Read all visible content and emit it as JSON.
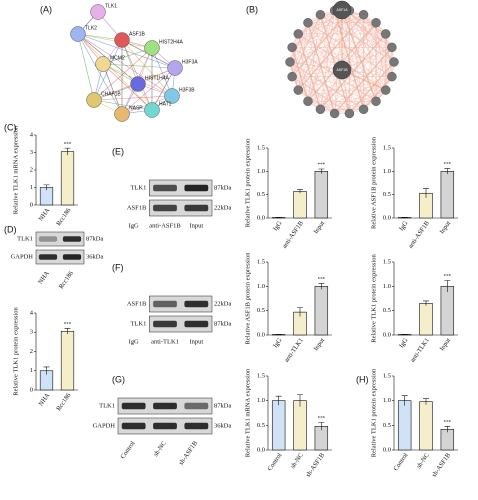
{
  "panels": [
    "(A)",
    "(B)",
    "(C)",
    "(D)",
    "(E)",
    "(F)",
    "(G)",
    "(H)"
  ],
  "network_a": {
    "nodes": [
      "TLK1",
      "TLK2",
      "ASF1B",
      "HIST2H4A",
      "H3F3A",
      "MCM2",
      "HIST1H4A",
      "H3F3B",
      "CHAF1B",
      "HAT1",
      "NASP"
    ]
  },
  "network_b": {
    "nodes": [
      "ASF1A",
      "ASF1B"
    ]
  },
  "blots": [
    {
      "rows": [
        {
          "protein": "TLK1",
          "size": "87kDa"
        },
        {
          "protein": "GAPDH",
          "size": "36kDa"
        }
      ],
      "lanes": [
        "NHA",
        "Rcc186"
      ]
    },
    {
      "rows": [
        {
          "protein": "TLK1",
          "size": "87kDa"
        },
        {
          "protein": "ASF1B",
          "size": "22kDa"
        }
      ],
      "lanes": [
        "IgG",
        "anti-ASF1B",
        "Input"
      ]
    },
    {
      "rows": [
        {
          "protein": "ASF1B",
          "size": "22kDa"
        },
        {
          "protein": "TLK1",
          "size": "87kDa"
        }
      ],
      "lanes": [
        "IgG",
        "anti-TLK1",
        "Input"
      ]
    },
    {
      "rows": [
        {
          "protein": "TLK1",
          "size": "87kDa"
        },
        {
          "protein": "GAPDH",
          "size": "36kDa"
        }
      ],
      "lanes": [
        "Control",
        "sh-NC",
        "sh-ASF1B"
      ]
    }
  ],
  "chart_data": [
    {
      "type": "bar",
      "ylabel": "Relative TLK1 mRNA expression",
      "categories": [
        "NHA",
        "Rcc186"
      ],
      "values": [
        1.0,
        3.05
      ],
      "errors": [
        0.15,
        0.2
      ],
      "colors": [
        "#cfe2f6",
        "#f5eecb"
      ],
      "ylim": [
        0,
        4
      ],
      "yticks": [
        0,
        1,
        2,
        3,
        4
      ],
      "significance": [
        null,
        "***"
      ]
    },
    {
      "type": "bar",
      "ylabel": "Relative TLK1 protein expression",
      "categories": [
        "NHA",
        "Rcc186"
      ],
      "values": [
        1.0,
        3.05
      ],
      "errors": [
        0.2,
        0.15
      ],
      "colors": [
        "#cfe2f6",
        "#f5eecb"
      ],
      "ylim": [
        0,
        4
      ],
      "yticks": [
        0,
        1,
        2,
        3,
        4
      ],
      "significance": [
        null,
        "***"
      ]
    },
    {
      "type": "bar",
      "ylabel": "Relative TLK1 protein expression",
      "categories": [
        "IgG",
        "anti-ASF1B",
        "Input"
      ],
      "values": [
        0.01,
        0.57,
        1.0
      ],
      "errors": [
        0.005,
        0.04,
        0.05
      ],
      "colors": [
        "#cfe2f6",
        "#f5eecb",
        "#d4d4d4"
      ],
      "ylim": [
        0,
        1.5
      ],
      "yticks": [
        {
          "value": 0,
          "label": "0.0"
        },
        {
          "value": 0.5,
          "label": "0.5"
        },
        {
          "value": 1,
          "label": "1.0"
        },
        {
          "value": 1.5,
          "label": "1.5"
        }
      ],
      "significance": [
        null,
        null,
        "***"
      ]
    },
    {
      "type": "bar",
      "ylabel": "Relative ASF1B protein expression",
      "categories": [
        "IgG",
        "anti-ASF1B",
        "Input"
      ],
      "values": [
        0.01,
        0.53,
        1.0
      ],
      "errors": [
        0.005,
        0.1,
        0.06
      ],
      "colors": [
        "#cfe2f6",
        "#f5eecb",
        "#d4d4d4"
      ],
      "ylim": [
        0,
        1.5
      ],
      "yticks": [
        {
          "value": 0,
          "label": "0.0"
        },
        {
          "value": 0.5,
          "label": "0.5"
        },
        {
          "value": 1,
          "label": "1.0"
        },
        {
          "value": 1.5,
          "label": "1.5"
        }
      ],
      "significance": [
        null,
        null,
        "***"
      ]
    },
    {
      "type": "bar",
      "ylabel": "Relative ASF1B protein expression",
      "categories": [
        "IgG",
        "anti-TLK1",
        "Input"
      ],
      "values": [
        0.01,
        0.47,
        1.0
      ],
      "errors": [
        0.005,
        0.09,
        0.06
      ],
      "colors": [
        "#cfe2f6",
        "#f5eecb",
        "#d4d4d4"
      ],
      "ylim": [
        0,
        1.5
      ],
      "yticks": [
        {
          "value": 0,
          "label": "0.0"
        },
        {
          "value": 0.5,
          "label": "0.5"
        },
        {
          "value": 1,
          "label": "1.0"
        },
        {
          "value": 1.5,
          "label": "1.5"
        }
      ],
      "significance": [
        null,
        null,
        "***"
      ]
    },
    {
      "type": "bar",
      "ylabel": "Relative TLK1 protein expression",
      "categories": [
        "IgG",
        "anti-TLK1",
        "Input"
      ],
      "values": [
        0.01,
        0.65,
        1.0
      ],
      "errors": [
        0.005,
        0.05,
        0.12
      ],
      "colors": [
        "#cfe2f6",
        "#f5eecb",
        "#d4d4d4"
      ],
      "ylim": [
        0,
        1.5
      ],
      "yticks": [
        {
          "value": 0,
          "label": "0.0"
        },
        {
          "value": 0.5,
          "label": "0.5"
        },
        {
          "value": 1,
          "label": "1.0"
        },
        {
          "value": 1.5,
          "label": "1.5"
        }
      ],
      "significance": [
        null,
        null,
        "***"
      ]
    },
    {
      "type": "bar",
      "ylabel": "Relative TLK1 mRNA expression",
      "categories": [
        "Control",
        "sh-NC",
        "sh-ASF1B"
      ],
      "values": [
        1.0,
        1.0,
        0.48
      ],
      "errors": [
        0.09,
        0.12,
        0.08
      ],
      "colors": [
        "#cfe2f6",
        "#f5eecb",
        "#d4d4d4"
      ],
      "ylim": [
        0,
        1.5
      ],
      "yticks": [
        {
          "value": 0,
          "label": "0.0"
        },
        {
          "value": 0.5,
          "label": "0.5"
        },
        {
          "value": 1,
          "label": "1.0"
        },
        {
          "value": 1.5,
          "label": "1.5"
        }
      ],
      "significance": [
        null,
        null,
        "***"
      ]
    },
    {
      "type": "bar",
      "ylabel": "Relative TLK1 protein expression",
      "categories": [
        "Control",
        "sh-NC",
        "sh-ASF1B"
      ],
      "values": [
        1.0,
        0.98,
        0.42
      ],
      "errors": [
        0.1,
        0.06,
        0.06
      ],
      "colors": [
        "#cfe2f6",
        "#f5eecb",
        "#d4d4d4"
      ],
      "ylim": [
        0,
        1.5
      ],
      "yticks": [
        {
          "value": 0,
          "label": "0.0"
        },
        {
          "value": 0.5,
          "label": "0.5"
        },
        {
          "value": 1,
          "label": "1.0"
        },
        {
          "value": 1.5,
          "label": "1.5"
        }
      ],
      "significance": [
        null,
        null,
        "***"
      ]
    }
  ]
}
